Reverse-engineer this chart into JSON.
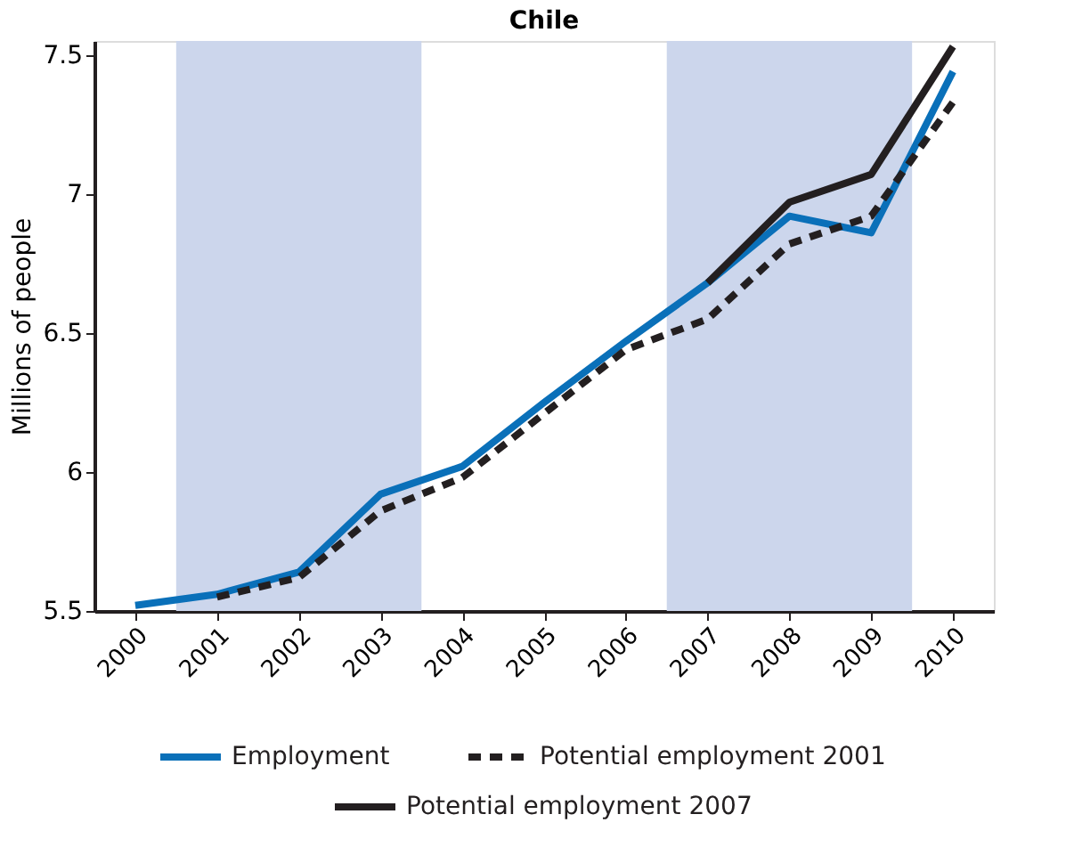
{
  "chart_data": {
    "type": "line",
    "title": "Chile",
    "ylabel": "Millions of people",
    "x": [
      2000,
      2001,
      2002,
      2003,
      2004,
      2005,
      2006,
      2007,
      2008,
      2009,
      2010
    ],
    "xlim": [
      1999.5,
      2010.5
    ],
    "xticks": [
      2000,
      2001,
      2002,
      2003,
      2004,
      2005,
      2006,
      2007,
      2008,
      2009,
      2010
    ],
    "ylim": [
      5.5,
      7.55
    ],
    "yticks": [
      5.5,
      {
        "value": 6,
        "label": "6"
      },
      6.5,
      {
        "value": 7,
        "label": "7"
      },
      7.5
    ],
    "grid": false,
    "legend": "bottom",
    "marker": "none",
    "bands": [
      {
        "axis": "x",
        "from": 2000.5,
        "to": 2003.5,
        "color": "#ccd6ec"
      },
      {
        "axis": "x",
        "from": 2006.5,
        "to": 2009.5,
        "color": "#ccd6ec"
      }
    ],
    "series": [
      {
        "name": "Employment",
        "color": "#0a70b9",
        "line_style": "solid",
        "values": [
          5.52,
          5.56,
          5.64,
          5.92,
          6.02,
          6.25,
          6.47,
          6.68,
          6.92,
          6.86,
          7.44
        ]
      },
      {
        "name": "Potential employment 2001",
        "color": "#231f20",
        "line_style": "dashed",
        "values": [
          null,
          5.55,
          5.62,
          5.86,
          5.98,
          6.21,
          6.44,
          6.55,
          6.82,
          6.92,
          7.33
        ]
      },
      {
        "name": "Potential employment 2007",
        "color": "#231f20",
        "line_style": "solid",
        "values": [
          null,
          null,
          null,
          null,
          null,
          null,
          null,
          6.68,
          6.97,
          7.07,
          7.53
        ]
      }
    ]
  }
}
